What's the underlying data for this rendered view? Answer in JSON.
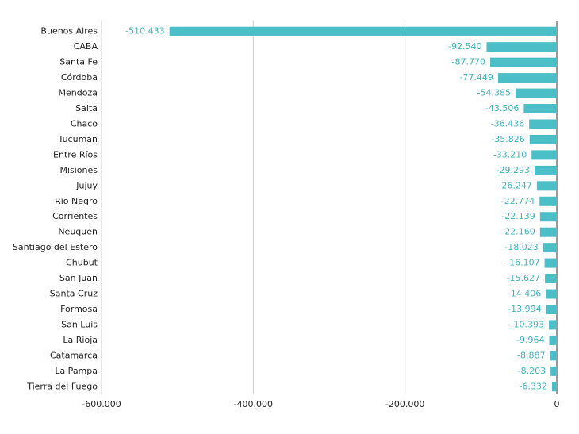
{
  "chart_data": {
    "type": "bar",
    "orientation": "horizontal",
    "color": "#4bbec7",
    "label_color": "#3fb3c0",
    "categories": [
      "Buenos Aires",
      "CABA",
      "Santa Fe",
      "Córdoba",
      "Mendoza",
      "Salta",
      "Chaco",
      "Tucumán",
      "Entre Ríos",
      "Misiones",
      "Jujuy",
      "Río Negro",
      "Corrientes",
      "Neuquén",
      "Santiago del Estero",
      "Chubut",
      "San Juan",
      "Santa Cruz",
      "Formosa",
      "San Luis",
      "La Rioja",
      "Catamarca",
      "La Pampa",
      "Tierra del Fuego"
    ],
    "values": [
      -510433,
      -92540,
      -87770,
      -77449,
      -54385,
      -43506,
      -36436,
      -35826,
      -33210,
      -29293,
      -26247,
      -22774,
      -22139,
      -22160,
      -18023,
      -16107,
      -15627,
      -14406,
      -13994,
      -10393,
      -9964,
      -8887,
      -8203,
      -6332
    ],
    "value_labels": [
      "-510.433",
      "-92.540",
      "-87.770",
      "-77.449",
      "-54.385",
      "-43.506",
      "-36.436",
      "-35.826",
      "-33.210",
      "-29.293",
      "-26.247",
      "-22.774",
      "-22.139",
      "-22.160",
      "-18.023",
      "-16.107",
      "-15.627",
      "-14.406",
      "-13.994",
      "-10.393",
      "-9.964",
      "-8.887",
      "-8.203",
      "-6.332"
    ],
    "xlim": [
      -600000,
      0
    ],
    "xticks": [
      {
        "value": -600000,
        "label": "-600.000"
      },
      {
        "value": -400000,
        "label": "-400.000"
      },
      {
        "value": -200000,
        "label": "-200.000"
      },
      0
    ],
    "grid": true
  }
}
